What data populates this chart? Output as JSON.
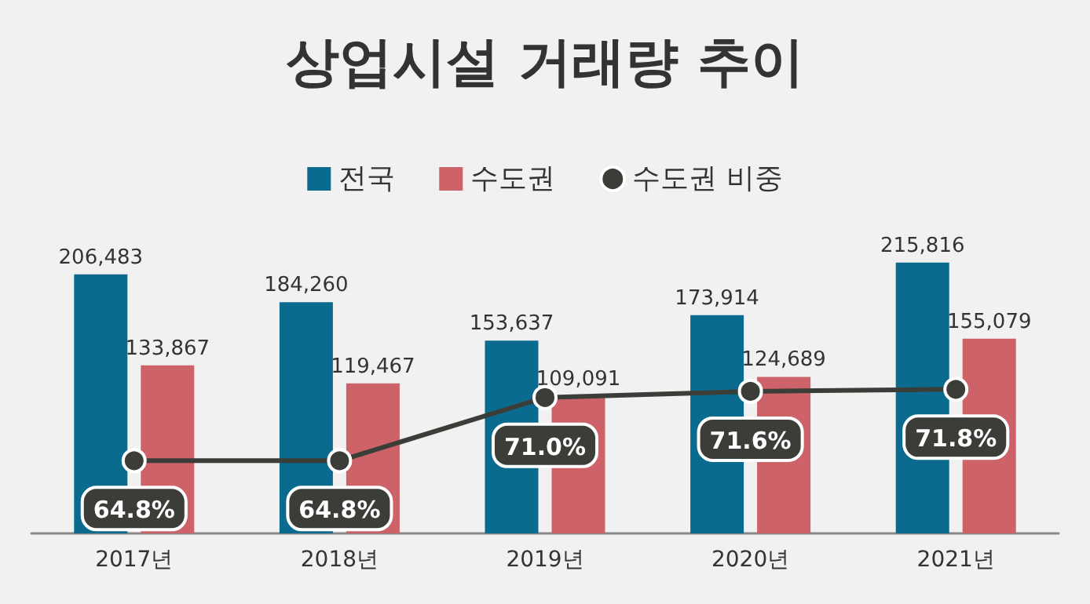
{
  "chart_data": {
    "type": "bar",
    "title": "상업시설 거래량 추이",
    "categories": [
      "2017년",
      "2018년",
      "2019년",
      "2020년",
      "2021년"
    ],
    "series": [
      {
        "name": "전국",
        "color": "#0b6b8f",
        "values": [
          206483,
          184260,
          153637,
          173914,
          215816
        ],
        "value_labels": [
          "206,483",
          "184,260",
          "153,637",
          "173,914",
          "215,816"
        ]
      },
      {
        "name": "수도권",
        "color": "#cd6368",
        "values": [
          133867,
          119467,
          109091,
          124689,
          155079
        ],
        "value_labels": [
          "133,867",
          "119,467",
          "109,091",
          "124,689",
          "155,079"
        ]
      },
      {
        "name": "수도권 비중",
        "type": "line",
        "axis": "y2",
        "color": "#3b3d38",
        "values": [
          64.8,
          64.8,
          71.0,
          71.6,
          71.8
        ],
        "value_labels": [
          "64.8%",
          "64.8%",
          "71.0%",
          "71.6%",
          "71.8%"
        ]
      }
    ],
    "tick_labels": "x",
    "legend": "top",
    "marker": "circle"
  }
}
